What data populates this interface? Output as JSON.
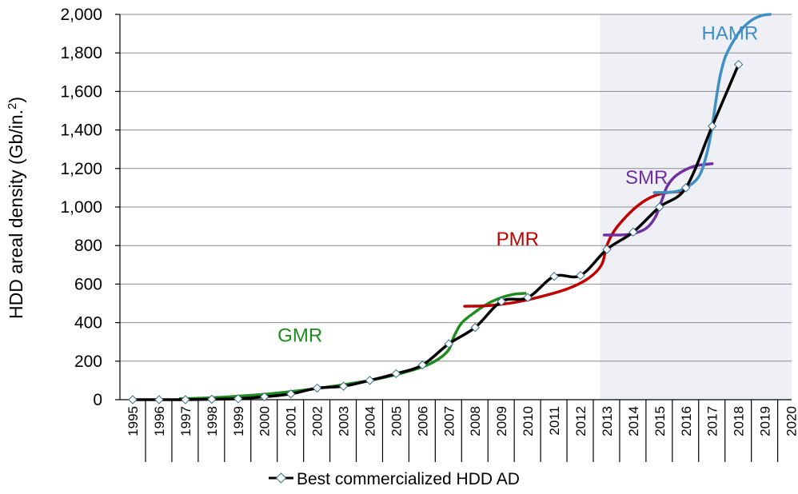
{
  "chart_data": {
    "type": "line",
    "title": "",
    "xlabel": "",
    "ylabel": "HDD areal density (Gb/in.",
    "ylabel_superscript": "2",
    "ylabel_close": ")",
    "xlim": [
      1995,
      2020
    ],
    "ylim": [
      0,
      2000
    ],
    "grid": true,
    "shaded_region": [
      2012.75,
      2020
    ],
    "shaded_color": "#eef0f6",
    "categories": [
      "1995",
      "1996",
      "1997",
      "1998",
      "1999",
      "2000",
      "2001",
      "2002",
      "2003",
      "2004",
      "2005",
      "2006",
      "2007",
      "2008",
      "2009",
      "2010",
      "2011",
      "2012",
      "2013",
      "2014",
      "2015",
      "2016",
      "2017",
      "2018",
      "2019",
      "2020"
    ],
    "y_ticks": [
      {
        "value": 0,
        "label": "0"
      },
      {
        "value": 200,
        "label": "200"
      },
      {
        "value": 400,
        "label": "400"
      },
      {
        "value": 600,
        "label": "600"
      },
      {
        "value": 800,
        "label": "800"
      },
      {
        "value": 1000,
        "label": "1,000"
      },
      {
        "value": 1200,
        "label": "1,200"
      },
      {
        "value": 1400,
        "label": "1,400"
      },
      {
        "value": 1600,
        "label": "1,600"
      },
      {
        "value": 1800,
        "label": "1,800"
      },
      {
        "value": 2000,
        "label": "2,000"
      }
    ],
    "series": [
      {
        "name": "Best commercialized HDD AD",
        "color": "#000000",
        "marker": "diamond",
        "x": [
          1995,
          1996,
          1997,
          1998,
          1999,
          2000,
          2001,
          2002,
          2003,
          2004,
          2005,
          2006,
          2007,
          2008,
          2009,
          2010,
          2011,
          2012,
          2013,
          2014,
          2015,
          2016,
          2017,
          2018
        ],
        "y": [
          0,
          0,
          0,
          2,
          5,
          15,
          30,
          60,
          70,
          100,
          135,
          180,
          290,
          375,
          510,
          530,
          640,
          645,
          780,
          870,
          1000,
          1100,
          1420,
          1740
        ]
      }
    ],
    "technology_curves": [
      {
        "name": "GMR",
        "color": "#1f8c1f",
        "label_x": 2000.5,
        "label_y": 300,
        "x": [
          1996.8,
          1998,
          1999,
          2000,
          2001,
          2002,
          2003,
          2004,
          2005,
          2006,
          2006.6,
          2007,
          2007.2,
          2007.5,
          2008,
          2008.5,
          2009,
          2009.5,
          2009.9
        ],
        "y": [
          5,
          10,
          18,
          28,
          42,
          58,
          78,
          100,
          130,
          170,
          210,
          260,
          330,
          400,
          455,
          500,
          530,
          548,
          552
        ]
      },
      {
        "name": "PMR",
        "color": "#c00000",
        "label_x": 2008.8,
        "label_y": 800,
        "x": [
          2007.6,
          2008.5,
          2009.5,
          2010.5,
          2011.5,
          2012.3,
          2012.8,
          2013.0,
          2013.3,
          2013.8,
          2014.3,
          2014.8,
          2015.3,
          2015.8
        ],
        "y": [
          485,
          488,
          505,
          535,
          575,
          630,
          700,
          800,
          880,
          960,
          1020,
          1058,
          1075,
          1080
        ]
      },
      {
        "name": "SMR",
        "color": "#7030a0",
        "label_x": 2013.7,
        "label_y": 1120,
        "x": [
          2012.9,
          2013.5,
          2014.0,
          2014.5,
          2014.85,
          2015.1,
          2015.3,
          2015.6,
          2016.0,
          2016.4,
          2016.8,
          2017.0
        ],
        "y": [
          855,
          855,
          862,
          890,
          950,
          1040,
          1110,
          1160,
          1195,
          1215,
          1222,
          1225
        ]
      },
      {
        "name": "HAMR",
        "color": "#3d8fc4",
        "label_x": 2016.6,
        "label_y": 1870,
        "x": [
          2014.8,
          2015.5,
          2016.0,
          2016.5,
          2016.8,
          2017.0,
          2017.15,
          2017.3,
          2017.5,
          2017.8,
          2018.1,
          2018.5,
          2018.9,
          2019.2
        ],
        "y": [
          1075,
          1078,
          1100,
          1160,
          1280,
          1420,
          1560,
          1680,
          1780,
          1860,
          1920,
          1970,
          1995,
          2000
        ]
      }
    ],
    "legend": {
      "placement": "bottom-center",
      "label": "Best commercialized HDD AD"
    }
  }
}
